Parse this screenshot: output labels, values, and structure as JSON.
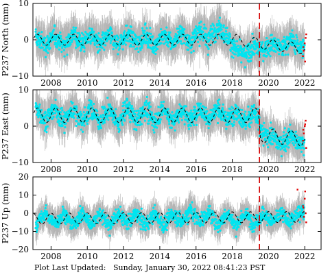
{
  "footer": {
    "label": "Plot Last Updated:",
    "timestamp": "Sunday, January 30, 2022 08:41:23 PST"
  },
  "style": {
    "errorbar_color": "#b4b4b4",
    "data_color": "#00e5f0",
    "outlier_color": "#e00000",
    "model_color": "#000000",
    "event_line_color": "#d40000"
  },
  "chart_data": [
    {
      "type": "scatter",
      "ylabel": "P237 North (mm)",
      "xlim": [
        2007.0,
        2022.9
      ],
      "ylim": [
        -10,
        10
      ],
      "xticks": [
        2008,
        2010,
        2012,
        2014,
        2016,
        2018,
        2020,
        2022
      ],
      "xtick_labels": [
        "2008",
        "2010",
        "2012",
        "2014",
        "2016",
        "2018",
        "2020",
        "2022"
      ],
      "yticks": [
        -10,
        0,
        10
      ],
      "ytick_labels": [
        "−10",
        "0",
        "10"
      ],
      "event_line_x": 2019.5,
      "series": [
        {
          "kind": "daily_positions",
          "x": [
            2007.2,
            2007.7,
            2008.2,
            2008.7,
            2009.2,
            2009.7,
            2010.2,
            2010.7,
            2011.2,
            2011.7,
            2012.2,
            2012.7,
            2013.2,
            2013.7,
            2014.2,
            2014.7,
            2015.2,
            2015.7,
            2016.2,
            2016.7,
            2017.2,
            2017.7,
            2018.2,
            2018.7,
            2019.2,
            2019.7,
            2020.2,
            2020.7,
            2021.2,
            2021.7
          ],
          "y": [
            0.5,
            -1.5,
            1.0,
            -1.5,
            1.5,
            -1.0,
            1.5,
            -1.5,
            1.0,
            -1.5,
            1.5,
            -1.0,
            1.0,
            -1.5,
            1.5,
            -1.0,
            2.0,
            -1.0,
            2.5,
            0.0,
            4.0,
            1.0,
            -3.0,
            -4.5,
            -2.0,
            -3.0,
            -1.0,
            -2.5,
            0.0,
            -2.0
          ],
          "scatter": [
            4.0,
            4.0,
            4.0,
            4.0,
            4.0,
            4.0,
            4.0,
            4.0,
            4.0,
            4.0,
            4.0,
            4.0,
            4.0,
            4.0,
            4.0,
            4.0,
            4.0,
            4.0,
            4.5,
            4.5,
            4.5,
            4.0,
            4.0,
            4.0,
            4.0,
            4.0,
            4.0,
            4.0,
            4.0,
            4.0
          ]
        },
        {
          "kind": "seasonal_model",
          "offset": [
            [
              2007.0,
              0.0
            ],
            [
              2018.2,
              0.0
            ],
            [
              2019.5,
              -1.0
            ],
            [
              2022.0,
              -2.5
            ]
          ],
          "amplitude": 1.5,
          "phase": 0.0
        },
        {
          "kind": "recent_outliers",
          "x": [
            2021.9,
            2021.95,
            2022.0,
            2022.05,
            2022.08,
            2021.92,
            2022.02
          ],
          "y": [
            -4.5,
            -3.0,
            -1.0,
            0.5,
            1.5,
            -2.0,
            -6.0
          ]
        }
      ]
    },
    {
      "type": "scatter",
      "ylabel": "P237 East (mm)",
      "xlim": [
        2007.0,
        2022.9
      ],
      "ylim": [
        -10,
        10
      ],
      "xticks": [
        2008,
        2010,
        2012,
        2014,
        2016,
        2018,
        2020,
        2022
      ],
      "xtick_labels": [
        "2008",
        "2010",
        "2012",
        "2014",
        "2016",
        "2018",
        "2020",
        "2022"
      ],
      "yticks": [
        -10,
        0,
        10
      ],
      "ytick_labels": [
        "−10",
        "0",
        "10"
      ],
      "event_line_x": 2019.5,
      "series": [
        {
          "kind": "daily_positions",
          "x": [
            2007.2,
            2007.7,
            2008.2,
            2008.7,
            2009.2,
            2009.7,
            2010.2,
            2010.7,
            2011.2,
            2011.7,
            2012.2,
            2012.7,
            2013.2,
            2013.7,
            2014.2,
            2014.7,
            2015.2,
            2015.7,
            2016.2,
            2016.7,
            2017.2,
            2017.7,
            2018.2,
            2018.7,
            2019.2,
            2019.7,
            2020.2,
            2020.7,
            2021.2,
            2021.7
          ],
          "y": [
            5.0,
            1.5,
            5.0,
            1.0,
            5.0,
            1.0,
            5.0,
            1.0,
            5.0,
            0.5,
            5.5,
            1.0,
            5.0,
            1.0,
            5.0,
            1.0,
            4.5,
            1.5,
            5.0,
            2.0,
            5.0,
            1.5,
            4.5,
            1.0,
            4.0,
            -2.5,
            -3.0,
            -5.0,
            -2.5,
            -5.0
          ],
          "scatter": [
            4.0,
            4.0,
            4.0,
            4.0,
            4.0,
            4.0,
            4.0,
            4.0,
            4.0,
            4.0,
            4.0,
            4.0,
            4.0,
            4.0,
            4.0,
            4.0,
            4.0,
            4.0,
            4.0,
            4.0,
            4.0,
            4.0,
            4.0,
            4.0,
            4.0,
            4.0,
            4.0,
            4.0,
            4.0,
            4.0
          ]
        },
        {
          "kind": "seasonal_model",
          "offset": [
            [
              2007.0,
              3.0
            ],
            [
              2019.45,
              3.0
            ],
            [
              2019.55,
              -2.5
            ],
            [
              2022.0,
              -3.5
            ]
          ],
          "amplitude": 2.0,
          "phase": 0.0
        },
        {
          "kind": "recent_outliers",
          "x": [
            2021.9,
            2021.95,
            2022.0,
            2022.05,
            2022.08,
            2021.92,
            2022.02
          ],
          "y": [
            -4.0,
            -2.0,
            0.0,
            1.5,
            -6.0,
            -1.0,
            0.5
          ]
        }
      ]
    },
    {
      "type": "scatter",
      "ylabel": "P237 Up (mm)",
      "xlim": [
        2007.0,
        2022.9
      ],
      "ylim": [
        -20,
        20
      ],
      "xticks": [
        2008,
        2010,
        2012,
        2014,
        2016,
        2018,
        2020,
        2022
      ],
      "xtick_labels": [
        "2008",
        "2010",
        "2012",
        "2014",
        "2016",
        "2018",
        "2020",
        "2022"
      ],
      "yticks": [
        -20,
        -10,
        0,
        10,
        20
      ],
      "ytick_labels": [
        "−20",
        "−10",
        "0",
        "10",
        "20"
      ],
      "event_line_x": 2019.5,
      "series": [
        {
          "kind": "daily_positions",
          "x": [
            2007.2,
            2007.7,
            2008.2,
            2008.7,
            2009.2,
            2009.7,
            2010.2,
            2010.7,
            2011.2,
            2011.7,
            2012.2,
            2012.7,
            2013.2,
            2013.7,
            2014.2,
            2014.7,
            2015.2,
            2015.7,
            2016.2,
            2016.7,
            2017.2,
            2017.7,
            2018.2,
            2018.7,
            2019.2,
            2019.7,
            2020.2,
            2020.7,
            2021.2,
            2021.7
          ],
          "y": [
            -6.0,
            0.0,
            -6.0,
            0.0,
            -7.0,
            0.0,
            -6.0,
            0.0,
            -7.0,
            0.0,
            -6.0,
            0.0,
            -7.0,
            0.0,
            -7.0,
            0.0,
            -5.0,
            2.0,
            -5.0,
            1.0,
            -7.0,
            0.0,
            -7.0,
            0.0,
            -6.0,
            0.0,
            -5.0,
            0.0,
            -5.0,
            1.0
          ],
          "scatter": [
            6.0,
            6.0,
            6.0,
            6.0,
            6.0,
            6.0,
            6.0,
            6.0,
            6.0,
            6.0,
            6.0,
            6.0,
            6.0,
            6.0,
            6.0,
            6.0,
            7.0,
            7.0,
            7.0,
            6.0,
            6.0,
            6.0,
            6.0,
            6.0,
            6.0,
            6.0,
            6.0,
            6.0,
            6.0,
            6.0
          ]
        },
        {
          "kind": "seasonal_model",
          "offset": [
            [
              2007.0,
              -3.0
            ],
            [
              2022.0,
              -2.0
            ]
          ],
          "amplitude": 3.0,
          "phase": 0.25
        },
        {
          "kind": "recent_outliers",
          "x": [
            2021.6,
            2021.9,
            2021.95,
            2022.0,
            2022.05,
            2022.08,
            2021.92,
            2022.02
          ],
          "y": [
            13.0,
            4.0,
            -2.0,
            8.0,
            0.0,
            -5.0,
            3.0,
            12.0
          ]
        }
      ]
    }
  ]
}
